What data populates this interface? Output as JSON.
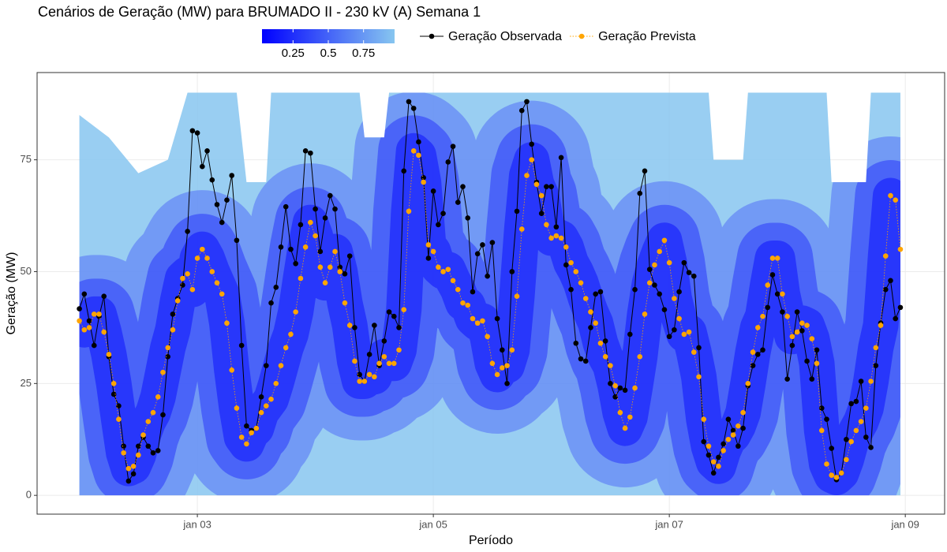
{
  "chart_data": {
    "type": "line",
    "title": "Cenários de Geração (MW) para BRUMADO II - 230 kV (A) Semana 1",
    "x_label": "Período",
    "y_label": "Geração (MW)",
    "xlim": [
      -8.6,
      176
    ],
    "ylim": [
      -4.2,
      94.5
    ],
    "xticks": [
      {
        "value": 24,
        "label": "jan 03"
      },
      {
        "value": 72,
        "label": "jan 05"
      },
      {
        "value": 120,
        "label": "jan 07"
      },
      {
        "value": 168,
        "label": "jan 09"
      }
    ],
    "yticks": [
      0,
      25,
      50,
      75
    ],
    "grid": true,
    "legend": "top",
    "colorbar": {
      "lim": [
        0.03,
        0.97
      ],
      "ticks": [
        0.25,
        0.5,
        0.75
      ],
      "colors": [
        "#0000ff",
        "#87c6f0"
      ]
    },
    "scenarios": {
      "x": [
        0,
        6,
        12,
        18,
        22,
        23,
        24,
        32,
        34,
        38,
        39,
        57,
        58,
        62,
        63,
        128,
        129,
        135,
        136,
        152,
        153,
        160,
        161,
        167
      ],
      "upper": [
        85,
        80,
        72,
        75,
        90,
        90,
        90,
        90,
        70,
        70,
        90,
        90,
        80,
        80,
        90,
        90,
        75,
        75,
        90,
        90,
        70,
        70,
        90,
        90
      ]
    },
    "x": [
      0,
      1,
      2,
      3,
      4,
      5,
      6,
      7,
      8,
      9,
      10,
      11,
      12,
      13,
      14,
      15,
      16,
      17,
      18,
      19,
      20,
      21,
      22,
      23,
      24,
      25,
      26,
      27,
      28,
      29,
      30,
      31,
      32,
      33,
      34,
      35,
      36,
      37,
      38,
      39,
      40,
      41,
      42,
      43,
      44,
      45,
      46,
      47,
      48,
      49,
      50,
      51,
      52,
      53,
      54,
      55,
      56,
      57,
      58,
      59,
      60,
      61,
      62,
      63,
      64,
      65,
      66,
      67,
      68,
      69,
      70,
      71,
      72,
      73,
      74,
      75,
      76,
      77,
      78,
      79,
      80,
      81,
      82,
      83,
      84,
      85,
      86,
      87,
      88,
      89,
      90,
      91,
      92,
      93,
      94,
      95,
      96,
      97,
      98,
      99,
      100,
      101,
      102,
      103,
      104,
      105,
      106,
      107,
      108,
      109,
      110,
      111,
      112,
      113,
      114,
      115,
      116,
      117,
      118,
      119,
      120,
      121,
      122,
      123,
      124,
      125,
      126,
      127,
      128,
      129,
      130,
      131,
      132,
      133,
      134,
      135,
      136,
      137,
      138,
      139,
      140,
      141,
      142,
      143,
      144,
      145,
      146,
      147,
      148,
      149,
      150,
      151,
      152,
      153,
      154,
      155,
      156,
      157,
      158,
      159,
      160,
      161,
      162,
      163,
      164,
      165,
      166,
      167
    ],
    "series": [
      {
        "name": "Geração Observada",
        "color": "#000000",
        "values": [
          41.7,
          45,
          39,
          33.5,
          40,
          44.5,
          31,
          22.6,
          20,
          11,
          3.2,
          4.8,
          11,
          13,
          11,
          9.5,
          10,
          18,
          31,
          40.5,
          44,
          47,
          59,
          81.5,
          81,
          73.5,
          77,
          70.5,
          65,
          61,
          66,
          71.5,
          57,
          33.5,
          15.5,
          14.5,
          15,
          22,
          29,
          43,
          46.5,
          55.5,
          64.5,
          55,
          51.8,
          60.5,
          77,
          76.5,
          64,
          54.5,
          62,
          67,
          64,
          51,
          49.5,
          53.5,
          37.5,
          27,
          25.5,
          31.5,
          38,
          29,
          34.5,
          41,
          40,
          37.5,
          72.5,
          88,
          86.5,
          79,
          71,
          53,
          68,
          60.5,
          63,
          74.5,
          78,
          65.5,
          69,
          62,
          45.5,
          54,
          56,
          49,
          56.5,
          39.5,
          32.5,
          25,
          50,
          63.5,
          86,
          88,
          78.5,
          70,
          63,
          69,
          69,
          60,
          75.5,
          51.5,
          46,
          34,
          30.5,
          30,
          37.5,
          45,
          45.5,
          34.5,
          25,
          22,
          24,
          23.5,
          36,
          46,
          67.5,
          72.5,
          50.5,
          47,
          45,
          41.5,
          35.5,
          37,
          45.5,
          52,
          49.8,
          49,
          33,
          12,
          9,
          5,
          8.5,
          11.5,
          17,
          14.5,
          11,
          15,
          24.5,
          29,
          31.5,
          32.5,
          42,
          49.3,
          45,
          41,
          26,
          33.5,
          41,
          36.8,
          30,
          26,
          32.5,
          19.5,
          17,
          10.5,
          3.5,
          5,
          12.5,
          20.5,
          21,
          25.5,
          13,
          10.7,
          29,
          38.5,
          46,
          48,
          39.5,
          42
        ]
      },
      {
        "name": "Geração Prevista",
        "color": "#ffa500",
        "values": [
          39,
          37,
          37.5,
          40.5,
          40.5,
          36.5,
          31.5,
          25,
          17,
          9.5,
          6,
          6.5,
          9,
          13.5,
          16.5,
          18.5,
          22,
          27.5,
          33,
          37,
          43.5,
          48.5,
          49.5,
          46,
          53,
          55,
          53,
          50,
          47.5,
          45,
          38.5,
          28,
          19.5,
          13,
          11.5,
          14,
          15,
          18.5,
          20,
          21.5,
          25,
          29,
          33,
          36,
          41,
          48.5,
          55.5,
          61,
          58,
          51,
          47.5,
          51,
          54.5,
          50,
          43,
          38,
          30,
          25.5,
          25.5,
          27,
          26.5,
          29.5,
          31,
          29.5,
          29.5,
          32.5,
          41.5,
          63.5,
          77,
          76,
          70,
          56,
          54.5,
          51,
          50,
          50.5,
          48,
          46,
          43,
          42.5,
          39.5,
          38.5,
          39,
          35.5,
          29.5,
          27,
          28.5,
          29,
          32.5,
          44.5,
          59.5,
          71.5,
          75,
          69.5,
          67,
          60.5,
          57.5,
          58,
          57.5,
          55.5,
          52,
          50,
          47.5,
          44,
          41,
          38.5,
          34,
          31,
          29,
          24.5,
          18.5,
          15,
          17.5,
          24,
          31,
          40.5,
          47.5,
          51.5,
          54.5,
          57,
          52,
          44,
          39.5,
          36,
          36.5,
          32,
          26.5,
          17,
          11,
          7.5,
          6.5,
          10,
          12.5,
          13.5,
          15.5,
          18.5,
          25,
          32,
          37.5,
          40,
          47,
          53,
          53,
          45,
          40,
          35.5,
          36.5,
          38.5,
          38,
          35,
          29.5,
          14.5,
          7,
          4.5,
          4,
          5,
          8,
          12,
          14.5,
          16.5,
          19.5,
          25.5,
          33,
          38,
          53.5,
          67,
          66,
          55
        ]
      }
    ]
  }
}
